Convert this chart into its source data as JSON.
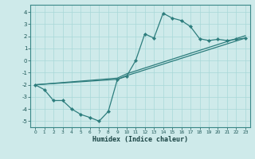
{
  "title": "",
  "xlabel": "Humidex (Indice chaleur)",
  "ylabel": "",
  "bg_color": "#ceeaea",
  "line_color": "#2d7d7d",
  "marker": "D",
  "markersize": 2.2,
  "linewidth": 0.9,
  "xlim": [
    -0.5,
    23.5
  ],
  "ylim": [
    -5.5,
    4.6
  ],
  "yticks": [
    -5,
    -4,
    -3,
    -2,
    -1,
    0,
    1,
    2,
    3,
    4
  ],
  "xticks": [
    0,
    1,
    2,
    3,
    4,
    5,
    6,
    7,
    8,
    9,
    10,
    11,
    12,
    13,
    14,
    15,
    16,
    17,
    18,
    19,
    20,
    21,
    22,
    23
  ],
  "grid_color": "#a8d8d8",
  "series": [
    {
      "x": [
        0,
        1,
        2,
        3,
        4,
        5,
        6,
        7,
        8,
        9,
        10,
        11,
        12,
        13,
        14,
        15,
        16,
        17,
        18,
        19,
        20,
        21,
        22,
        23
      ],
      "y": [
        -2.0,
        -2.4,
        -3.3,
        -3.3,
        -4.0,
        -4.45,
        -4.7,
        -5.0,
        -4.2,
        -1.55,
        -1.3,
        0.0,
        2.2,
        1.85,
        3.9,
        3.5,
        3.3,
        2.8,
        1.8,
        1.65,
        1.75,
        1.65,
        1.75,
        1.85
      ],
      "has_markers": true
    },
    {
      "x": [
        0,
        9,
        10,
        23
      ],
      "y": [
        -2.0,
        -1.55,
        -1.25,
        1.85
      ],
      "has_markers": false
    },
    {
      "x": [
        0,
        9,
        10,
        23
      ],
      "y": [
        -2.0,
        -1.45,
        -1.1,
        2.05
      ],
      "has_markers": false
    }
  ]
}
